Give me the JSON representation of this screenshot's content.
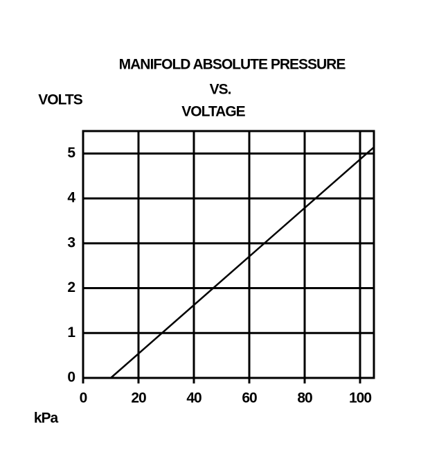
{
  "chart_data": {
    "type": "line",
    "title": [
      "MANIFOLD ABSOLUTE PRESSURE",
      "VS.",
      "VOLTAGE"
    ],
    "y_label": "VOLTS",
    "x_label": "kPa",
    "series": [
      {
        "x": [
          10,
          105
        ],
        "values": [
          0,
          5.14
        ],
        "color": "#000000"
      }
    ],
    "xlim": [
      0,
      105
    ],
    "xticks": [
      0,
      20,
      40,
      60,
      80,
      100
    ],
    "ylim": [
      0,
      5.5
    ],
    "yticks": [
      0,
      1,
      2,
      3,
      4,
      5
    ],
    "grid": true
  }
}
